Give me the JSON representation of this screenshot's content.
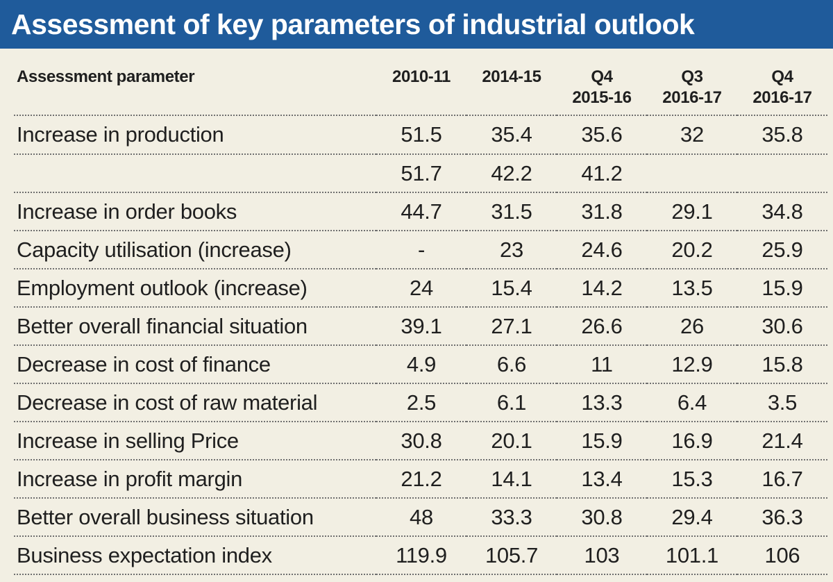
{
  "title": "Assessment of key parameters of industrial outlook",
  "chart_data": {
    "type": "table",
    "title": "Assessment of key parameters of industrial outlook",
    "columns": [
      "Assessment parameter",
      "2010-11",
      "2014-15",
      "Q4 2015-16",
      "Q3 2016-17",
      "Q4 2016-17"
    ],
    "header": [
      {
        "label": "Assessment parameter"
      },
      {
        "line1": "2010-11",
        "line2": ""
      },
      {
        "line1": "2014-15",
        "line2": ""
      },
      {
        "line1": "Q4",
        "line2": "2015-16"
      },
      {
        "line1": "Q3",
        "line2": "2016-17"
      },
      {
        "line1": "Q4",
        "line2": "2016-17"
      }
    ],
    "rows": [
      {
        "label": "Increase in production",
        "values": [
          "51.5",
          "35.4",
          "35.6",
          "32",
          "35.8"
        ]
      },
      {
        "label": "",
        "values": [
          "51.7",
          "42.2",
          "41.2",
          "",
          ""
        ]
      },
      {
        "label": "Increase in order books",
        "values": [
          "44.7",
          "31.5",
          "31.8",
          "29.1",
          "34.8"
        ]
      },
      {
        "label": "Capacity utilisation (increase)",
        "values": [
          "-",
          "23",
          "24.6",
          "20.2",
          "25.9"
        ]
      },
      {
        "label": "Employment outlook (increase)",
        "values": [
          "24",
          "15.4",
          "14.2",
          "13.5",
          "15.9"
        ]
      },
      {
        "label": "Better overall financial situation",
        "values": [
          "39.1",
          "27.1",
          "26.6",
          "26",
          "30.6"
        ]
      },
      {
        "label": "Decrease in cost of finance",
        "values": [
          "4.9",
          "6.6",
          "11",
          "12.9",
          "15.8"
        ]
      },
      {
        "label": "Decrease in cost of raw material",
        "values": [
          "2.5",
          "6.1",
          "13.3",
          "6.4",
          "3.5"
        ]
      },
      {
        "label": "Increase in selling Price",
        "values": [
          "30.8",
          "20.1",
          "15.9",
          "16.9",
          "21.4"
        ]
      },
      {
        "label": "Increase in profit margin",
        "values": [
          "21.2",
          "14.1",
          "13.4",
          "15.3",
          "16.7"
        ]
      },
      {
        "label": "Better overall business situation",
        "values": [
          "48",
          "33.3",
          "30.8",
          "29.4",
          "36.3"
        ]
      },
      {
        "label": "Business expectation index",
        "values": [
          "119.9",
          "105.7",
          "103",
          "101.1",
          "106"
        ]
      }
    ]
  },
  "colors": {
    "title_bar": "#1f5b9b",
    "title_text": "#ffffff",
    "background": "#f2efe3",
    "text": "#1f1f1f",
    "rule": "#6f6f6f"
  }
}
